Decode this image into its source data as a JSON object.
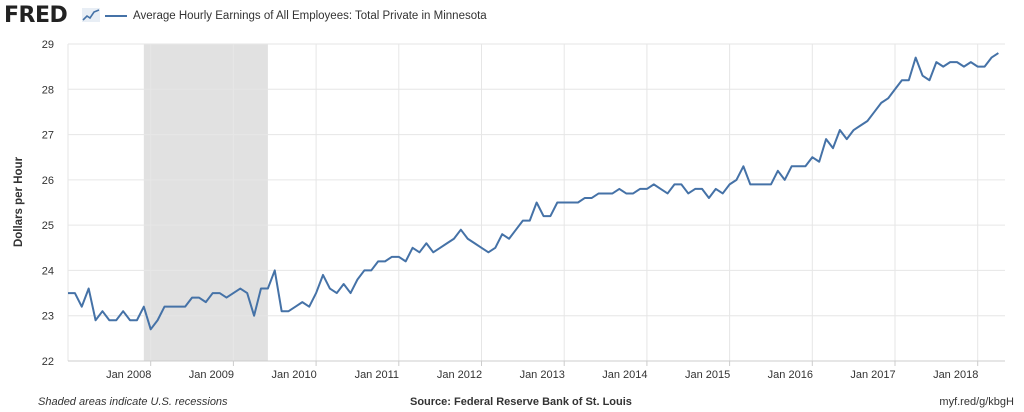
{
  "header": {
    "logo": "FRED",
    "logo_icon": "trend-line-icon",
    "legend_label": "Average Hourly Earnings of All Employees: Total Private in Minnesota"
  },
  "footer": {
    "left": "Shaded areas indicate U.S. recessions",
    "center": "Source: Federal Reserve Bank of St. Louis",
    "right": "myf.red/g/kbgH"
  },
  "colors": {
    "series": "#4572a7",
    "recession": "#e1e1e1",
    "grid": "#e6e6e6"
  },
  "chart_data": {
    "type": "line",
    "title": "",
    "ylabel": "Dollars per Hour",
    "xlabel": "",
    "ylim": [
      22,
      29
    ],
    "yticks": [
      22,
      23,
      24,
      25,
      26,
      27,
      28,
      29
    ],
    "xticks": [
      {
        "label": "Jan 2008",
        "x": 2008.0
      },
      {
        "label": "Jan 2009",
        "x": 2009.0
      },
      {
        "label": "Jan 2010",
        "x": 2010.0
      },
      {
        "label": "Jan 2011",
        "x": 2011.0
      },
      {
        "label": "Jan 2012",
        "x": 2012.0
      },
      {
        "label": "Jan 2013",
        "x": 2013.0
      },
      {
        "label": "Jan 2014",
        "x": 2014.0
      },
      {
        "label": "Jan 2015",
        "x": 2015.0
      },
      {
        "label": "Jan 2016",
        "x": 2016.0
      },
      {
        "label": "Jan 2017",
        "x": 2017.0
      },
      {
        "label": "Jan 2018",
        "x": 2018.0
      }
    ],
    "xlim": [
      2007.0,
      2018.33
    ],
    "grid": true,
    "recessions": [
      {
        "start": "Dec 2007",
        "end": "Jun 2009",
        "x0": 2007.917,
        "x1": 2009.417
      }
    ],
    "series": [
      {
        "name": "Average Hourly Earnings of All Employees: Total Private in Minnesota",
        "start": "Jan 2007",
        "frequency": "monthly",
        "values": [
          23.5,
          23.5,
          23.2,
          23.6,
          22.9,
          23.1,
          22.9,
          22.9,
          23.1,
          22.9,
          22.9,
          23.2,
          22.7,
          22.9,
          23.2,
          23.2,
          23.2,
          23.2,
          23.4,
          23.4,
          23.3,
          23.5,
          23.5,
          23.4,
          23.5,
          23.6,
          23.5,
          23.0,
          23.6,
          23.6,
          24.0,
          23.1,
          23.1,
          23.2,
          23.3,
          23.2,
          23.5,
          23.9,
          23.6,
          23.5,
          23.7,
          23.5,
          23.8,
          24.0,
          24.0,
          24.2,
          24.2,
          24.3,
          24.3,
          24.2,
          24.5,
          24.4,
          24.6,
          24.4,
          24.5,
          24.6,
          24.7,
          24.9,
          24.7,
          24.6,
          24.5,
          24.4,
          24.5,
          24.8,
          24.7,
          24.9,
          25.1,
          25.1,
          25.5,
          25.2,
          25.2,
          25.5,
          25.5,
          25.5,
          25.5,
          25.6,
          25.6,
          25.7,
          25.7,
          25.7,
          25.8,
          25.7,
          25.7,
          25.8,
          25.8,
          25.9,
          25.8,
          25.7,
          25.9,
          25.9,
          25.7,
          25.8,
          25.8,
          25.6,
          25.8,
          25.7,
          25.9,
          26.0,
          26.3,
          25.9,
          25.9,
          25.9,
          25.9,
          26.2,
          26.0,
          26.3,
          26.3,
          26.3,
          26.5,
          26.4,
          26.9,
          26.7,
          27.1,
          26.9,
          27.1,
          27.2,
          27.3,
          27.5,
          27.7,
          27.8,
          28.0,
          28.2,
          28.2,
          28.7,
          28.3,
          28.2,
          28.6,
          28.5,
          28.6,
          28.6,
          28.5,
          28.6,
          28.5,
          28.5,
          28.7,
          28.8
        ]
      }
    ]
  }
}
